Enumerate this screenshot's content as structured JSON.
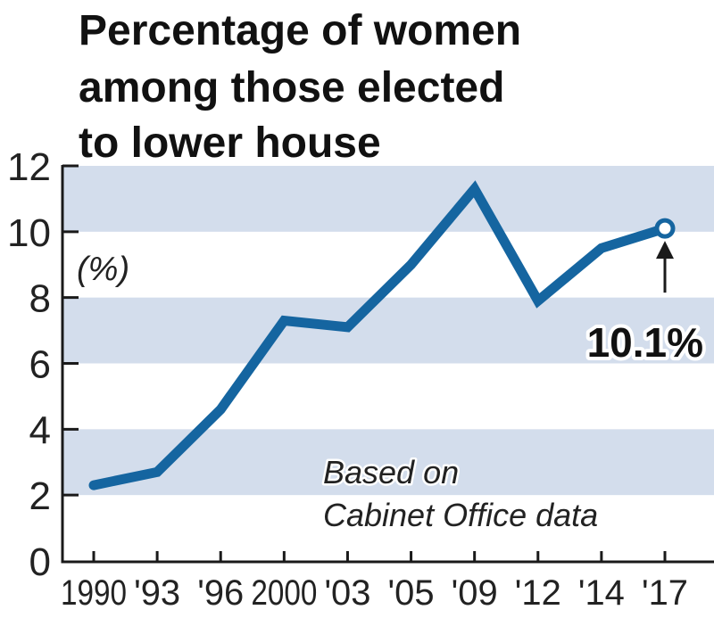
{
  "chart_data": {
    "type": "line",
    "title_lines": [
      "Percentage of women",
      "among those elected",
      "to lower house"
    ],
    "ylabel": "(%)",
    "xlabel": "",
    "categories": [
      "1990",
      "'93",
      "'96",
      "2000",
      "'03",
      "'05",
      "'09",
      "'12",
      "'14",
      "'17"
    ],
    "series": [
      {
        "name": "Women among those elected to lower house",
        "values": [
          2.3,
          2.7,
          4.6,
          7.3,
          7.1,
          9.0,
          11.3,
          7.9,
          9.5,
          10.1
        ],
        "color": "#1565a0"
      }
    ],
    "ylim": [
      0,
      12
    ],
    "yticks": [
      "0",
      "2",
      "4",
      "6",
      "8",
      "10",
      "12"
    ],
    "band_color": "#d3ddec",
    "grid": false,
    "callout": {
      "label": "10.1%",
      "category": "'17",
      "value": 10.1
    },
    "source_lines": [
      "Based on",
      "Cabinet Office data"
    ]
  }
}
